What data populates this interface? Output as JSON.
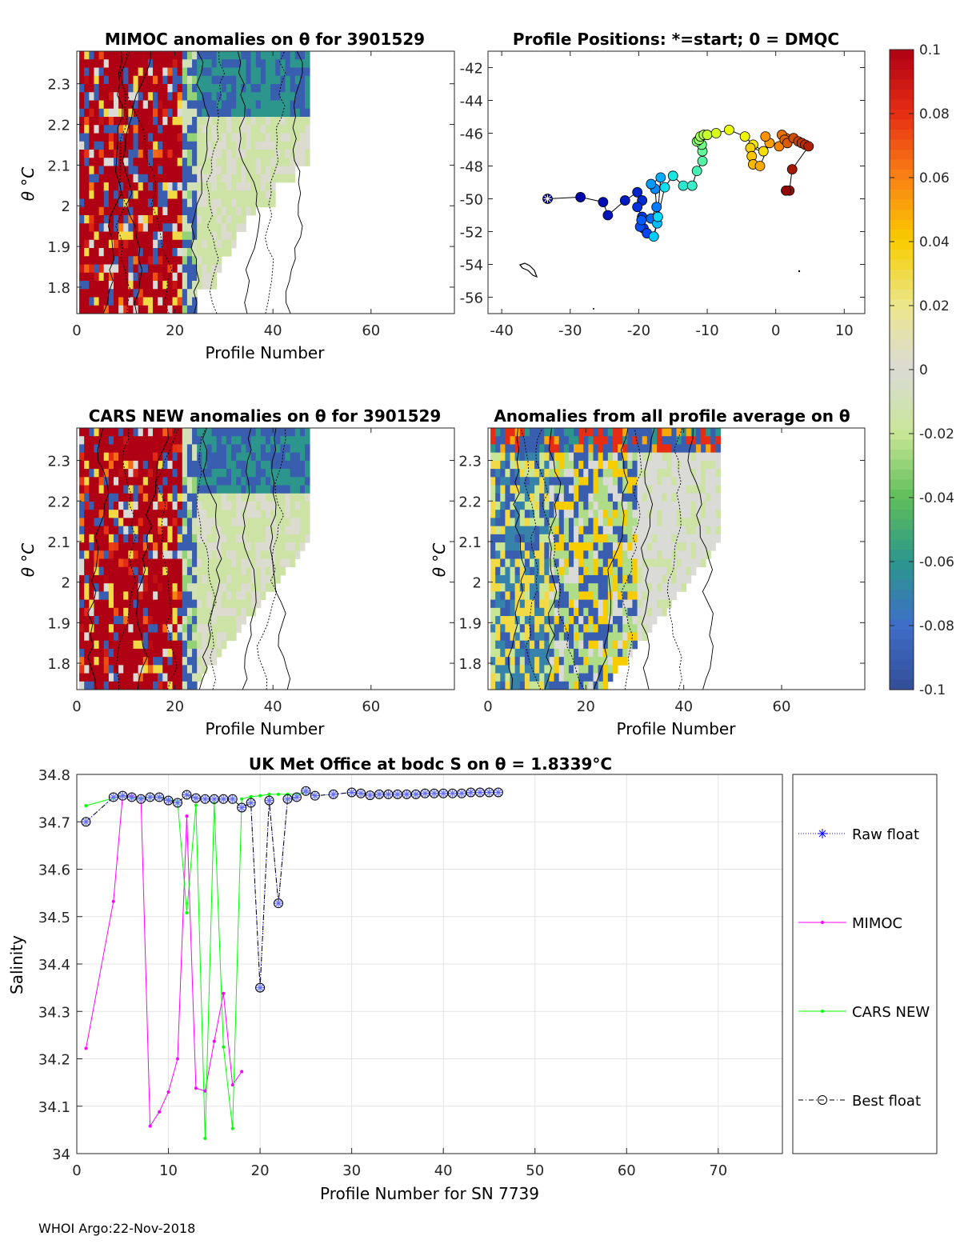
{
  "float_sn": "3901529",
  "footer": "WHOI Argo:22-Nov-2018",
  "colorbar": {
    "ticks": [
      "0.1",
      "0.08",
      "0.06",
      "0.04",
      "0.02",
      "0",
      "-0.02",
      "-0.04",
      "-0.06",
      "-0.08",
      "-0.1"
    ],
    "min": -0.1,
    "max": 0.1
  },
  "panels": {
    "mimoc": {
      "title": "MIMOC anomalies on θ  for 3901529",
      "xlabel": "Profile Number",
      "ylabel": "θ °C"
    },
    "positions": {
      "title": "Profile Positions: *=start; 0 = DMQC"
    },
    "cars": {
      "title": "CARS NEW anomalies on θ for 3901529",
      "xlabel": "Profile Number",
      "ylabel": "θ °C"
    },
    "allavg": {
      "title": "Anomalies from all profile average on θ",
      "xlabel": "Profile Number",
      "ylabel": "θ °C"
    },
    "salinity": {
      "title": "UK Met Office at bodc S on θ = 1.8339°C",
      "xlabel": "Profile Number for SN 7739",
      "ylabel": "Salinity"
    }
  },
  "chart_data": [
    {
      "id": "mimoc",
      "type": "heatmap",
      "title": "MIMOC anomalies on θ  for 3901529",
      "xlabel": "Profile Number",
      "ylabel": "θ °C",
      "xlim": [
        0,
        77
      ],
      "ylim": [
        1.735,
        2.38
      ],
      "xticks": [
        0,
        20,
        40,
        60
      ],
      "yticks": [
        1.8,
        1.9,
        2,
        2.1,
        2.2,
        2.3
      ],
      "profiles": 47,
      "profile_top_theta": [
        2.38,
        2.38,
        2.38,
        2.38,
        2.38,
        2.38,
        2.38,
        2.38,
        2.38,
        2.38,
        2.38,
        2.38,
        2.38,
        2.38,
        2.38,
        2.38,
        2.38,
        2.38,
        2.38,
        2.38,
        2.38,
        2.38,
        2.38,
        2.38,
        2.38,
        2.38,
        2.38,
        2.38,
        2.38,
        2.38,
        2.38,
        2.38,
        2.38,
        2.38,
        2.38,
        2.38,
        2.38,
        2.38,
        2.38,
        2.38,
        2.38,
        2.38,
        2.38,
        2.38,
        2.38,
        2.38,
        2.38
      ],
      "profile_bottom_theta": [
        1.735,
        1.735,
        1.735,
        1.735,
        1.735,
        1.735,
        1.735,
        1.735,
        1.735,
        1.735,
        1.735,
        1.735,
        1.735,
        1.735,
        1.735,
        1.735,
        1.735,
        1.735,
        1.735,
        1.735,
        1.735,
        1.735,
        1.735,
        1.735,
        1.78,
        1.78,
        1.78,
        1.78,
        1.83,
        1.87,
        1.87,
        1.88,
        1.93,
        1.93,
        1.96,
        1.96,
        1.98,
        1.98,
        1.98,
        1.98,
        2.05,
        2.05,
        2.05,
        2.05,
        2.08,
        2.08,
        2.08
      ]
    },
    {
      "id": "positions",
      "type": "scatter",
      "title": "Profile Positions: *=start; 0 = DMQC",
      "xlim": [
        -42,
        13
      ],
      "ylim": [
        -57,
        -41
      ],
      "xticks": [
        -40,
        -30,
        -20,
        -10,
        0,
        10
      ],
      "yticks": [
        -42,
        -44,
        -46,
        -48,
        -50,
        -52,
        -54,
        -56
      ],
      "lon": [
        -33.3,
        -28.5,
        -25.2,
        -24.5,
        -22,
        -20.2,
        -19.5,
        -20.2,
        -19.5,
        -19.3,
        -18.8,
        -19.8,
        -19.6,
        -18.2,
        -17.4,
        -17.6,
        -18.2,
        -16.8,
        -17.3,
        -17.8,
        -17.2,
        -16.2,
        -15,
        -13.5,
        -12.2,
        -11.5,
        -10.7,
        -10.7,
        -10.8,
        -11.5,
        -11.2,
        -11,
        -10.5,
        -10,
        -8.7,
        -6.8,
        -4.5,
        -3.3,
        -1.8,
        -3.7,
        -3.5,
        -3.3,
        -2.3,
        -0.9,
        -1.5,
        0.5,
        1.5
      ],
      "lat": [
        -50,
        -49.9,
        -50.2,
        -51,
        -50.1,
        -49.6,
        -50.1,
        -50.5,
        -51.1,
        -51.8,
        -52.1,
        -51.7,
        -51.3,
        -51.2,
        -50.5,
        -49.4,
        -49.1,
        -48.7,
        -51.5,
        -52.3,
        -51.1,
        -49.3,
        -48.6,
        -49.2,
        -49.2,
        -48.3,
        -47.7,
        -47.1,
        -46.7,
        -46.5,
        -46.4,
        -46.2,
        -46.1,
        -46.1,
        -46,
        -45.8,
        -46.2,
        -46.7,
        -47.1,
        -46.9,
        -47.4,
        -47.9,
        -48,
        -46.6,
        -46.2,
        -46.8,
        -46.3
      ],
      "extra_lon": [
        0.9,
        1.3,
        1.7,
        2.6,
        3.3,
        3.8,
        4.3,
        4.8,
        2.4,
        2.0,
        1.5
      ],
      "extra_lat": [
        -46.1,
        -46.4,
        -46.6,
        -46.3,
        -46.5,
        -46.6,
        -46.7,
        -46.8,
        -48.2,
        -49.5,
        -49.5
      ]
    },
    {
      "id": "cars",
      "type": "heatmap",
      "title": "CARS NEW anomalies on θ for 3901529",
      "xlabel": "Profile Number",
      "ylabel": "θ °C",
      "xlim": [
        0,
        77
      ],
      "ylim": [
        1.735,
        2.38
      ],
      "xticks": [
        0,
        20,
        40,
        60
      ],
      "yticks": [
        1.8,
        1.9,
        2,
        2.1,
        2.2,
        2.3
      ],
      "profiles": 47
    },
    {
      "id": "allavg",
      "type": "heatmap",
      "title": "Anomalies from all profile average on θ",
      "xlabel": "Profile Number",
      "ylabel": "θ °C",
      "xlim": [
        0,
        77
      ],
      "ylim": [
        1.735,
        2.38
      ],
      "xticks": [
        0,
        20,
        40,
        60
      ],
      "yticks": [
        1.8,
        1.9,
        2,
        2.1,
        2.2,
        2.3
      ],
      "profiles": 47
    },
    {
      "id": "salinity",
      "type": "line",
      "title": "UK Met Office at bodc S on θ = 1.8339°C",
      "xlabel": "Profile Number for SN 7739",
      "ylabel": "Salinity",
      "xlim": [
        0,
        77
      ],
      "ylim": [
        34,
        34.8
      ],
      "xticks": [
        0,
        10,
        20,
        30,
        40,
        50,
        60,
        70
      ],
      "yticks": [
        34,
        34.1,
        34.2,
        34.3,
        34.4,
        34.5,
        34.6,
        34.7,
        34.8
      ],
      "legend": [
        "Raw float",
        "MIMOC",
        "CARS NEW",
        "Best float"
      ],
      "series": [
        {
          "name": "MIMOC",
          "color": "#ff00ff",
          "x": [
            1,
            4,
            5,
            6,
            7,
            8,
            9,
            10,
            11,
            12,
            13,
            14,
            15,
            16,
            17,
            18
          ],
          "y": [
            34.222,
            34.532,
            34.755,
            34.755,
            34.75,
            34.058,
            34.088,
            34.13,
            34.2,
            34.712,
            34.138,
            34.132,
            34.237,
            34.338,
            34.145,
            34.173
          ]
        },
        {
          "name": "CARS NEW",
          "color": "#00ff00",
          "x": [
            1,
            4,
            5,
            6,
            7,
            8,
            9,
            10,
            11,
            12,
            13,
            14,
            15,
            16,
            17,
            18,
            19,
            20,
            21,
            22,
            23,
            24,
            25
          ],
          "y": [
            34.734,
            34.75,
            34.755,
            34.75,
            34.75,
            34.752,
            34.752,
            34.748,
            34.743,
            34.508,
            34.735,
            34.032,
            34.74,
            34.225,
            34.053,
            34.748,
            34.753,
            34.755,
            34.758,
            34.758,
            34.758,
            34.758,
            34.762
          ]
        },
        {
          "name": "Raw float",
          "color": "#0000ff",
          "x": [
            1,
            4,
            5,
            6,
            7,
            8,
            9,
            10,
            11,
            12,
            13,
            14,
            15,
            16,
            17,
            18,
            19,
            20,
            21,
            22,
            23,
            24,
            25,
            26,
            28,
            30,
            31,
            32,
            33,
            34,
            35,
            36,
            37,
            38,
            39,
            40,
            41,
            42,
            43,
            44,
            45,
            46
          ],
          "y": [
            34.7,
            34.752,
            34.755,
            34.752,
            34.748,
            34.752,
            34.752,
            34.745,
            34.74,
            34.757,
            34.75,
            34.748,
            34.748,
            34.748,
            34.748,
            34.73,
            34.74,
            34.35,
            34.745,
            34.528,
            34.748,
            34.752,
            34.765,
            34.755,
            34.758,
            34.762,
            34.76,
            34.756,
            34.758,
            34.758,
            34.758,
            34.758,
            34.758,
            34.76,
            34.76,
            34.76,
            34.76,
            34.76,
            34.762,
            34.762,
            34.762,
            34.762
          ]
        },
        {
          "name": "Best float",
          "color": "#000000",
          "x": [
            1,
            4,
            5,
            6,
            7,
            8,
            9,
            10,
            11,
            12,
            13,
            14,
            15,
            16,
            17,
            18,
            19,
            20,
            21,
            22,
            23,
            24,
            25,
            26,
            28,
            30,
            31,
            32,
            33,
            34,
            35,
            36,
            37,
            38,
            39,
            40,
            41,
            42,
            43,
            44,
            45,
            46
          ],
          "y": [
            34.7,
            34.752,
            34.755,
            34.752,
            34.748,
            34.752,
            34.752,
            34.745,
            34.74,
            34.757,
            34.75,
            34.748,
            34.748,
            34.748,
            34.748,
            34.73,
            34.74,
            34.35,
            34.745,
            34.528,
            34.748,
            34.752,
            34.765,
            34.755,
            34.758,
            34.762,
            34.76,
            34.756,
            34.758,
            34.758,
            34.758,
            34.758,
            34.758,
            34.76,
            34.76,
            34.76,
            34.76,
            34.76,
            34.762,
            34.762,
            34.762,
            34.762
          ]
        }
      ]
    }
  ]
}
